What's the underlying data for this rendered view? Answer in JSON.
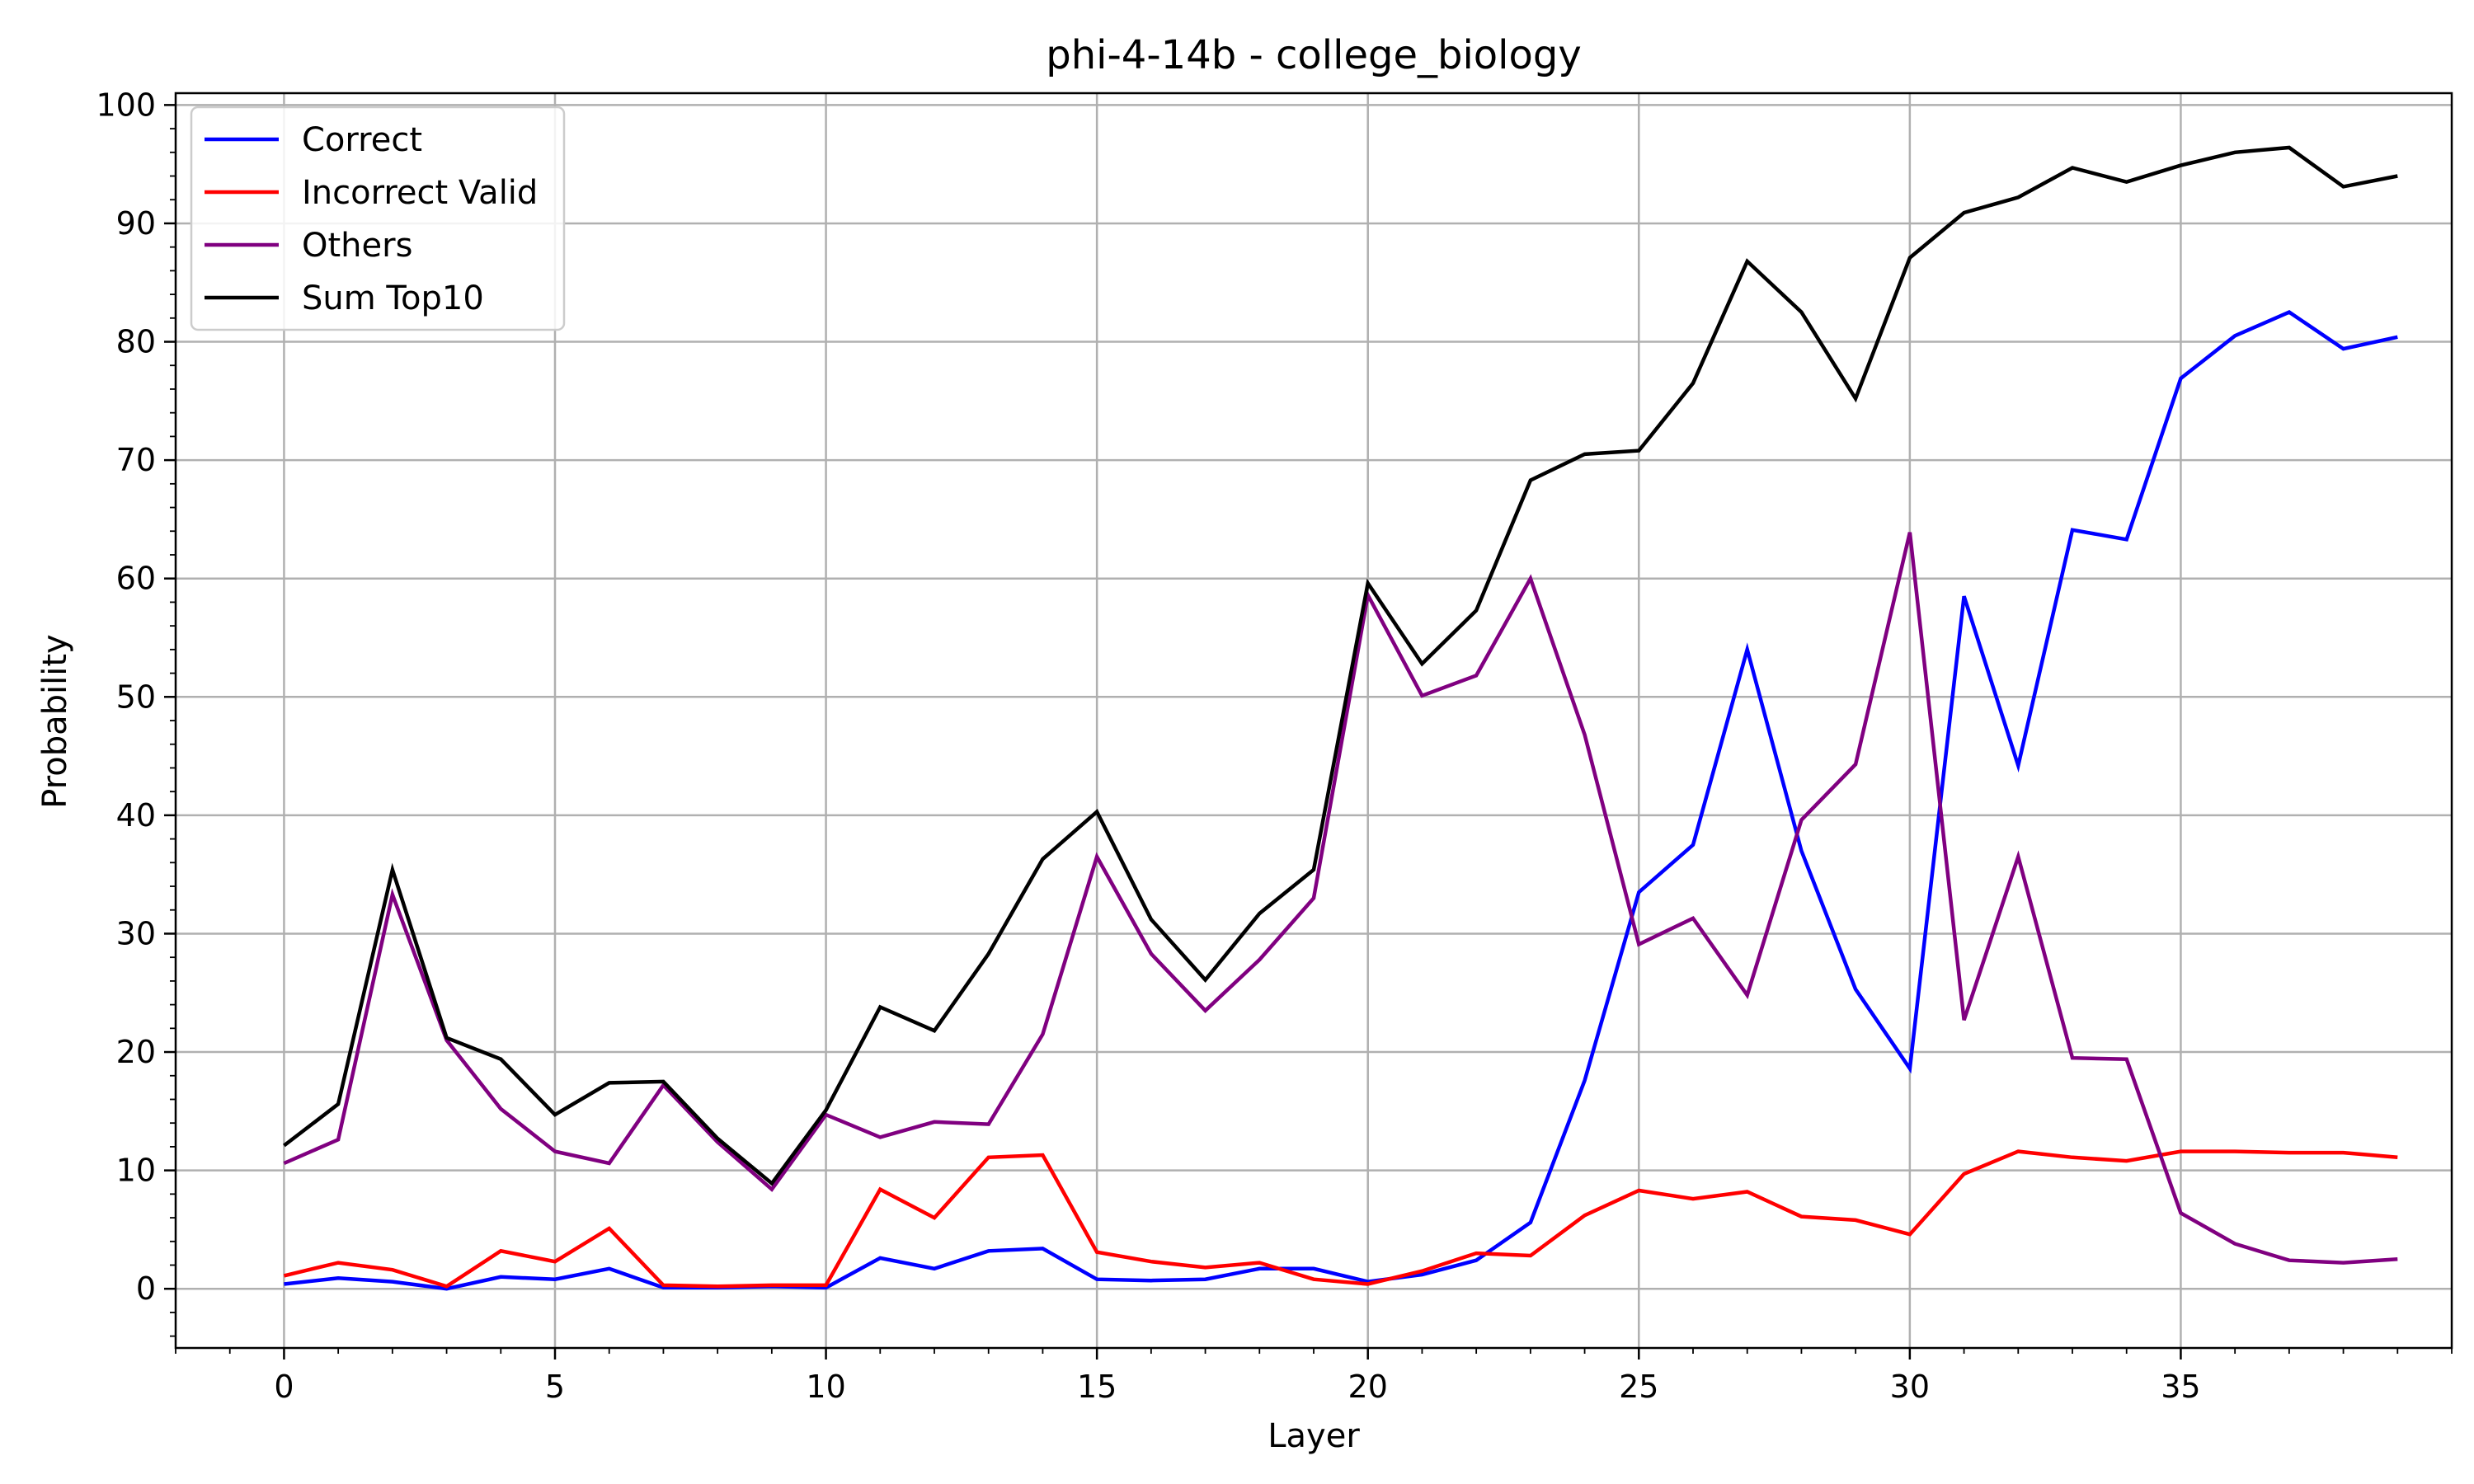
{
  "chart_data": {
    "type": "line",
    "title": "phi-4-14b - college_biology",
    "xlabel": "Layer",
    "ylabel": "Probability",
    "xlim": [
      -2,
      40
    ],
    "ylim": [
      -5,
      101
    ],
    "xticks": [
      0,
      5,
      10,
      15,
      20,
      25,
      30,
      35
    ],
    "yticks": [
      0,
      10,
      20,
      30,
      40,
      50,
      60,
      70,
      80,
      90,
      100
    ],
    "grid": true,
    "legend_position": "top-left",
    "x": [
      0,
      1,
      2,
      3,
      4,
      5,
      6,
      7,
      8,
      9,
      10,
      11,
      12,
      13,
      14,
      15,
      16,
      17,
      18,
      19,
      20,
      21,
      22,
      23,
      24,
      25,
      26,
      27,
      28,
      29,
      30,
      31,
      32,
      33,
      34,
      35,
      36,
      37,
      38,
      39
    ],
    "series": [
      {
        "name": "Correct",
        "color": "#0000ff",
        "values": [
          0.4,
          0.9,
          0.6,
          0.0,
          1.0,
          0.8,
          1.7,
          0.1,
          0.1,
          0.2,
          0.1,
          2.6,
          1.7,
          3.2,
          3.4,
          0.8,
          0.7,
          0.8,
          1.7,
          1.7,
          0.6,
          1.2,
          2.4,
          5.6,
          17.6,
          33.5,
          37.5,
          54.0,
          37.0,
          25.3,
          18.6,
          58.5,
          44.2,
          64.1,
          63.3,
          76.9,
          80.5,
          82.5,
          79.4,
          80.4
        ]
      },
      {
        "name": "Incorrect Valid",
        "color": "#ff0000",
        "values": [
          1.1,
          2.2,
          1.6,
          0.2,
          3.2,
          2.3,
          5.1,
          0.3,
          0.2,
          0.3,
          0.3,
          8.4,
          6.0,
          11.1,
          11.3,
          3.1,
          2.3,
          1.8,
          2.2,
          0.8,
          0.4,
          1.5,
          3.0,
          2.8,
          6.2,
          8.3,
          7.6,
          8.2,
          6.1,
          5.8,
          4.6,
          9.7,
          11.6,
          11.1,
          10.8,
          11.6,
          11.6,
          11.5,
          11.5,
          11.1
        ]
      },
      {
        "name": "Others",
        "color": "#800080",
        "values": [
          10.6,
          12.6,
          33.3,
          21.0,
          15.2,
          11.6,
          10.6,
          17.2,
          12.4,
          8.4,
          14.7,
          12.8,
          14.1,
          13.9,
          21.5,
          36.5,
          28.3,
          23.5,
          27.8,
          33.0,
          58.6,
          50.1,
          51.8,
          60.0,
          46.8,
          29.1,
          31.3,
          24.8,
          39.6,
          44.3,
          63.9,
          22.7,
          36.5,
          19.5,
          19.4,
          6.4,
          3.8,
          2.4,
          2.2,
          2.5
        ]
      },
      {
        "name": "Sum Top10",
        "color": "#000000",
        "values": [
          12.1,
          15.6,
          35.4,
          21.2,
          19.4,
          14.7,
          17.4,
          17.5,
          12.7,
          8.9,
          15.1,
          23.8,
          21.8,
          28.3,
          36.3,
          40.3,
          31.2,
          26.1,
          31.7,
          35.4,
          59.6,
          52.8,
          57.3,
          68.3,
          70.5,
          70.8,
          76.5,
          86.8,
          82.5,
          75.2,
          87.1,
          90.9,
          92.2,
          94.7,
          93.5,
          94.9,
          96.0,
          96.4,
          93.1,
          94.0
        ]
      }
    ]
  }
}
